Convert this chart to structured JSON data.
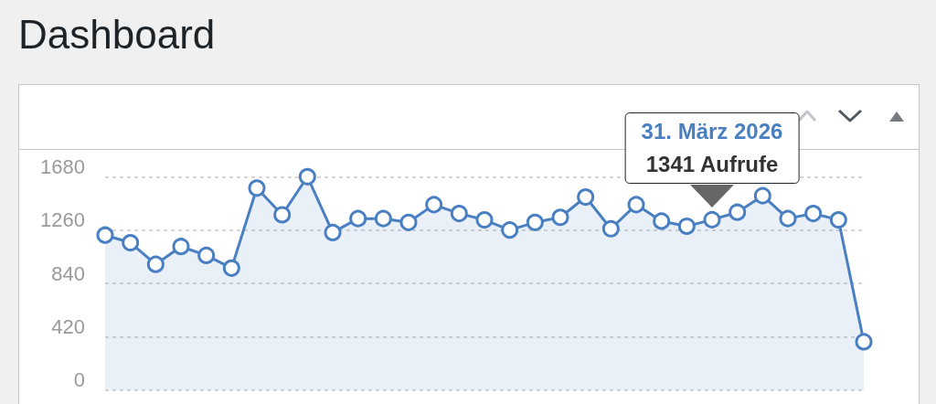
{
  "chart_data": {
    "type": "area",
    "title": "Dashboard",
    "categories": [
      null,
      null,
      null,
      null,
      null,
      null,
      null,
      null,
      null,
      null,
      null,
      null,
      null,
      null,
      null,
      null,
      null,
      null,
      null,
      null,
      null,
      null,
      null,
      null,
      null,
      null,
      null,
      null,
      null,
      null,
      null
    ],
    "values": [
      1220,
      1160,
      990,
      1130,
      1060,
      960,
      1590,
      1380,
      1680,
      1240,
      1350,
      1350,
      1320,
      1460,
      1390,
      1340,
      1260,
      1320,
      1360,
      1520,
      1270,
      1460,
      1330,
      1290,
      1341,
      1400,
      1530,
      1350,
      1390,
      1340,
      380
    ],
    "color": "#4a80c2",
    "ylim": [
      0,
      1680
    ],
    "yticks": [
      0,
      420,
      840,
      1260,
      1680
    ],
    "grid": "y",
    "marker": "circle",
    "line_style": "solid",
    "tick_labels": "y",
    "annotations": [
      {
        "text": "31. März 2026\n1341 Aufrufe",
        "y": 1341
      }
    ]
  }
}
